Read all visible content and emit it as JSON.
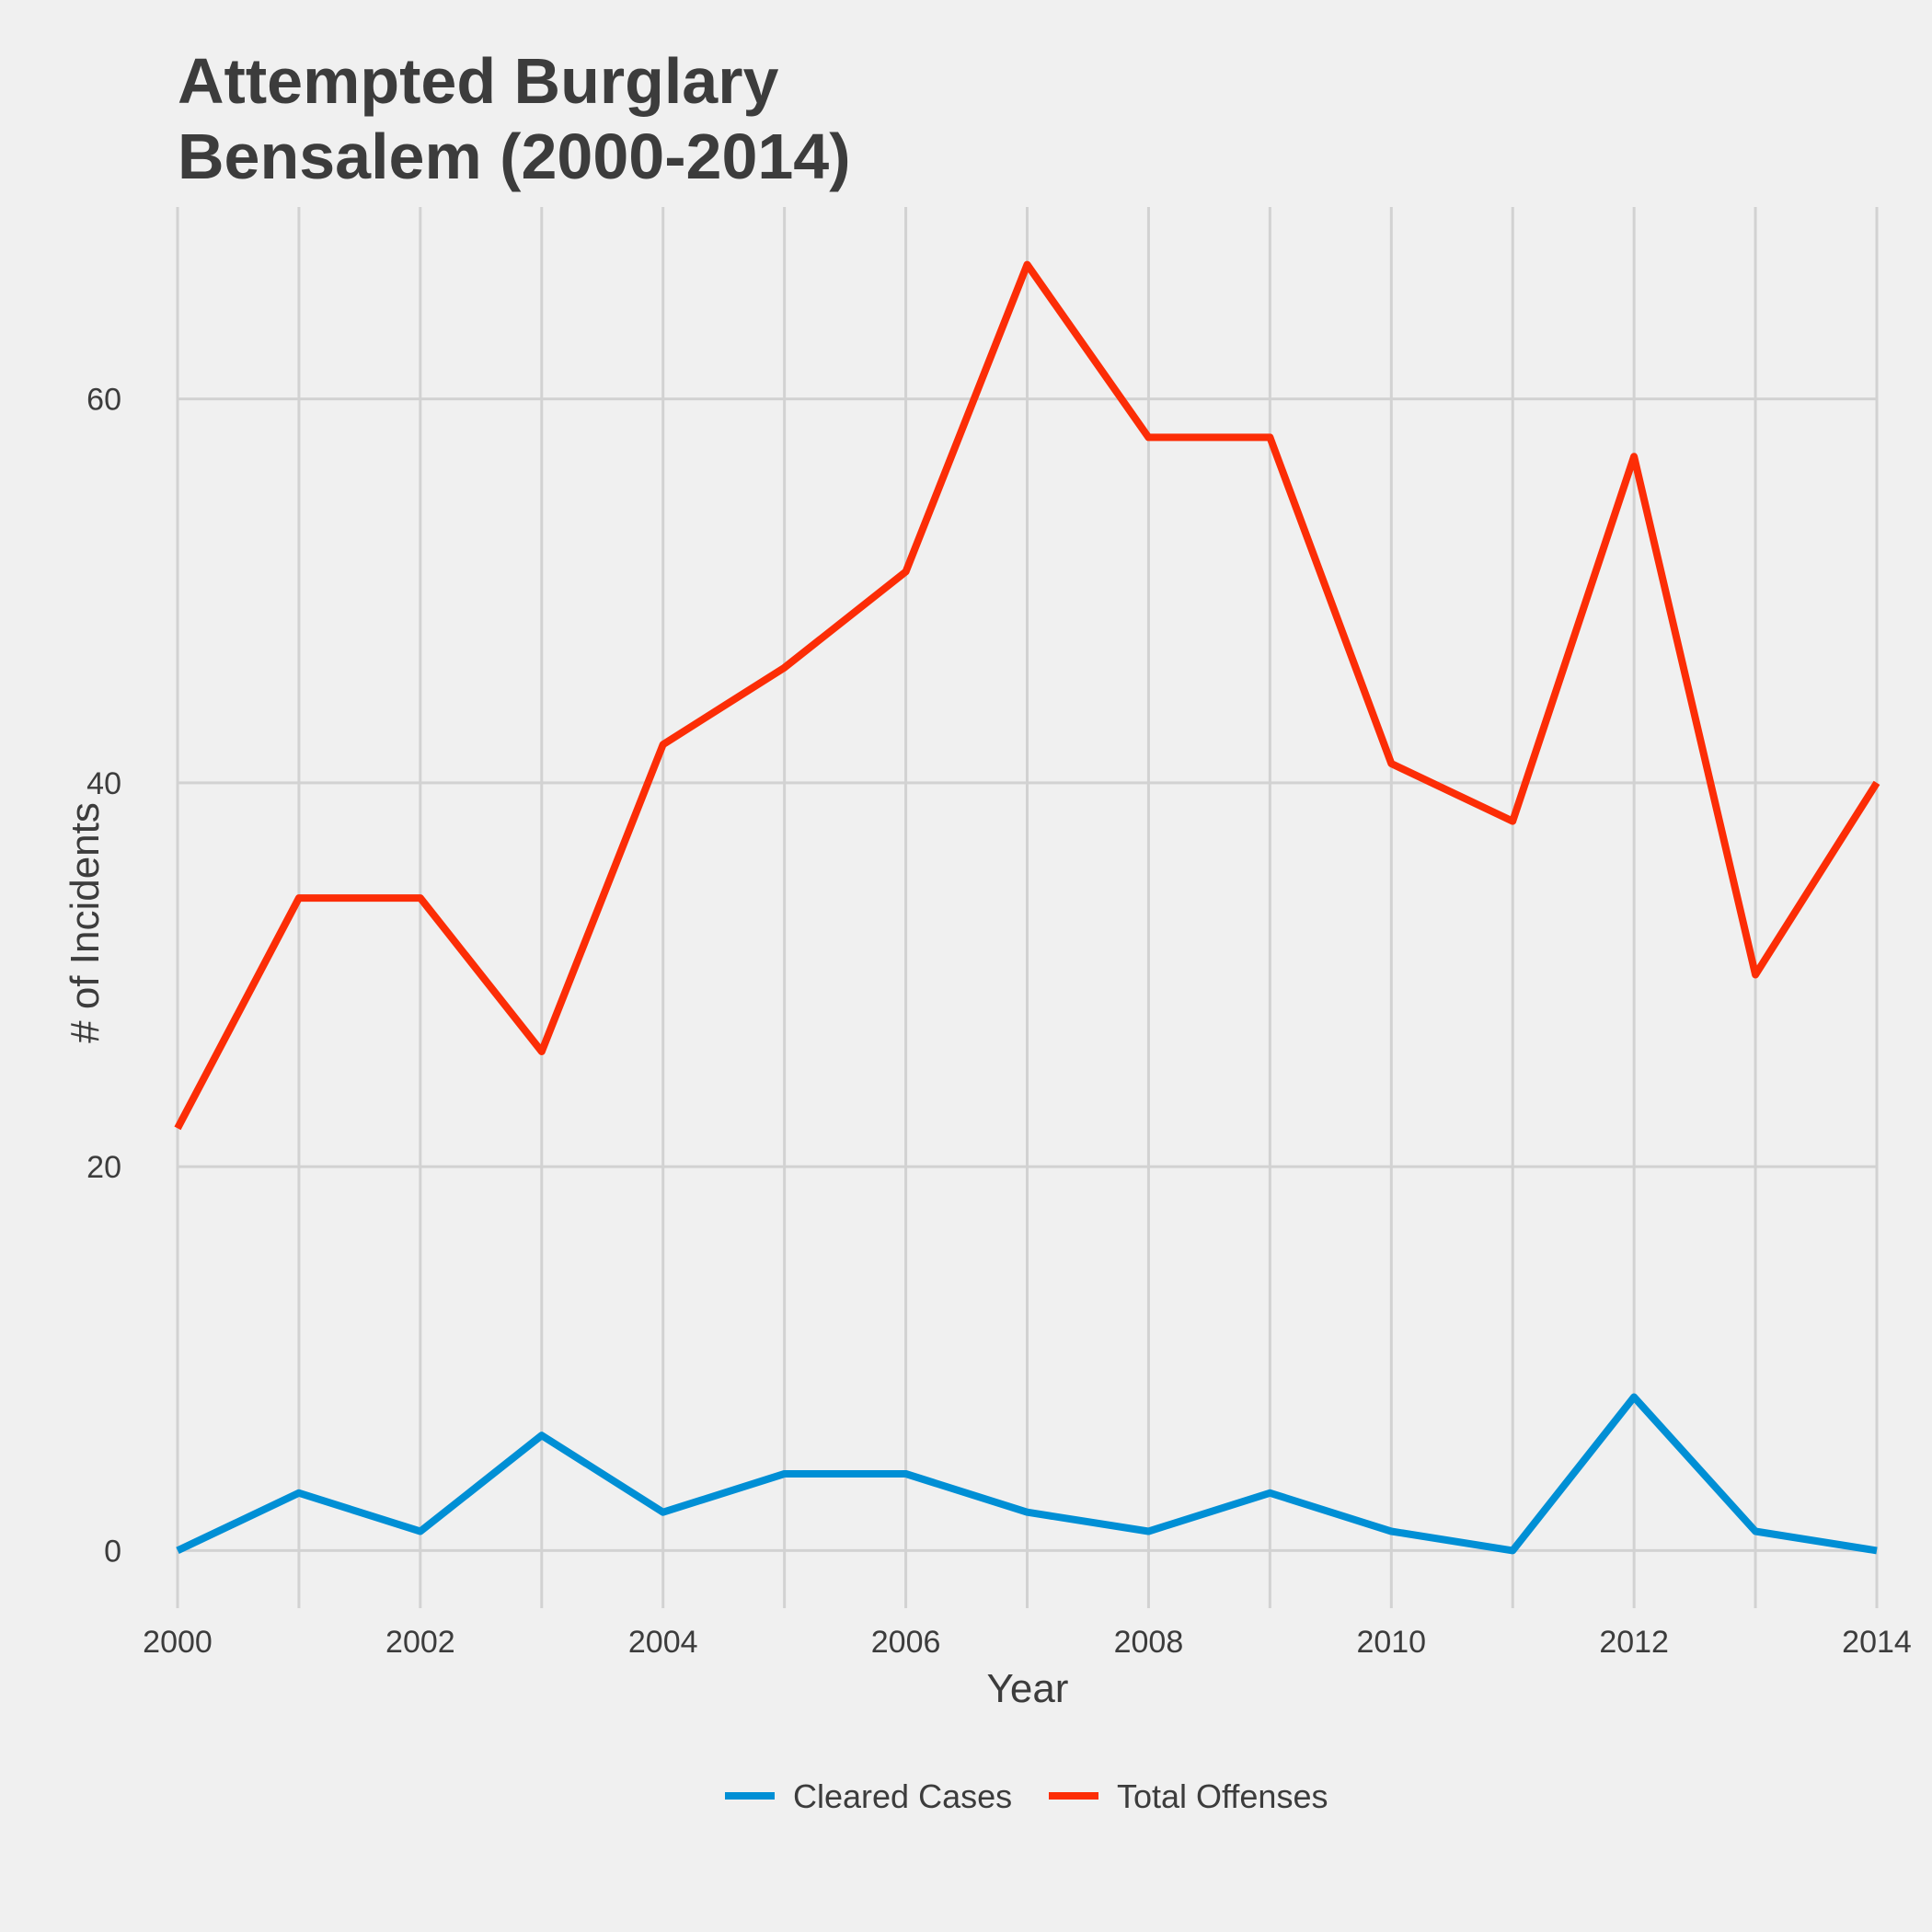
{
  "chart_data": {
    "type": "line",
    "title_lines": [
      "Attempted Burglary",
      "Bensalem (2000-2014)"
    ],
    "xlabel": "Year",
    "ylabel": "# of Incidents",
    "x": [
      2000,
      2001,
      2002,
      2003,
      2004,
      2005,
      2006,
      2007,
      2008,
      2009,
      2010,
      2011,
      2012,
      2013,
      2014
    ],
    "xlim": [
      2000,
      2014
    ],
    "ylim": [
      -3,
      70
    ],
    "x_ticks": [
      2000,
      2002,
      2004,
      2006,
      2008,
      2010,
      2012,
      2014
    ],
    "y_ticks": [
      0,
      20,
      40,
      60
    ],
    "grid": true,
    "legend_position": "bottom",
    "series": [
      {
        "name": "Cleared Cases",
        "color": "#008fd5",
        "values": [
          0,
          3,
          1,
          6,
          2,
          4,
          4,
          2,
          1,
          3,
          1,
          0,
          8,
          1,
          0
        ]
      },
      {
        "name": "Total Offenses",
        "color": "#fc2d06",
        "values": [
          22,
          34,
          34,
          26,
          42,
          46,
          51,
          67,
          58,
          58,
          41,
          38,
          57,
          30,
          40
        ]
      }
    ]
  }
}
